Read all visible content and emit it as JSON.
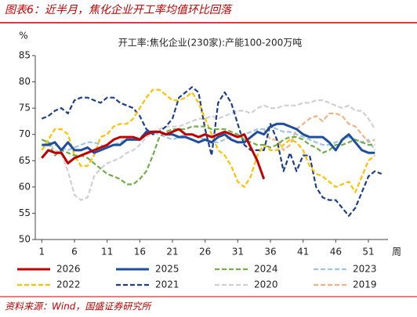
{
  "chart_data": {
    "type": "line",
    "title": "图表6：近半月，焦化企业开工率均值环比回落",
    "subtitle": "开工率:焦化企业(230家):产能100-200万吨",
    "source": "资料来源：Wind，国盛证券研究所",
    "ylabel": "%",
    "xlabel": "周",
    "x": [
      1,
      2,
      3,
      4,
      5,
      6,
      7,
      8,
      9,
      10,
      11,
      12,
      13,
      14,
      15,
      16,
      17,
      18,
      19,
      20,
      21,
      22,
      23,
      24,
      25,
      26,
      27,
      28,
      29,
      30,
      31,
      32,
      33,
      34,
      35,
      36,
      37,
      38,
      39,
      40,
      41,
      42,
      43,
      44,
      45,
      46,
      47,
      48,
      49,
      50,
      51,
      52,
      53
    ],
    "xlim": [
      0,
      54
    ],
    "xticks": [
      1,
      6,
      11,
      16,
      21,
      26,
      31,
      36,
      41,
      46,
      51
    ],
    "ylim": [
      50,
      85
    ],
    "yticks": [
      50,
      55,
      60,
      65,
      70,
      75,
      80,
      85
    ],
    "series": [
      {
        "name": "2026",
        "color": "#c00000",
        "style": "solid",
        "values": [
          65.5,
          67,
          66.5,
          66.5,
          64.5,
          65.5,
          66,
          66.5,
          67,
          67.5,
          68,
          69,
          69.5,
          69.5,
          69.5,
          69,
          70,
          70.5,
          70.5,
          70,
          70.5,
          71,
          70,
          70,
          69.5,
          70,
          69.5,
          70,
          70.5,
          70,
          69.5,
          70,
          67.5,
          65,
          61.5,
          null,
          null,
          null,
          null,
          null,
          null,
          null,
          null,
          null,
          null,
          null,
          null,
          null,
          null,
          null,
          null,
          null,
          null
        ]
      },
      {
        "name": "2025",
        "color": "#1f4e9c",
        "style": "solid",
        "values": [
          68,
          68,
          68.5,
          67,
          68.5,
          67,
          67,
          67.5,
          66.5,
          67,
          67.5,
          68,
          68,
          69,
          69,
          69,
          70.5,
          70.5,
          70.5,
          70,
          70,
          69.5,
          69.5,
          69,
          68.5,
          69,
          68.5,
          69.5,
          70,
          69,
          68.5,
          68.5,
          69.5,
          70.5,
          70,
          71.5,
          72,
          72,
          71.5,
          71,
          70,
          69.5,
          69.5,
          69.5,
          68.5,
          67,
          69,
          70,
          68.5,
          67,
          66.5,
          66.5,
          null
        ]
      },
      {
        "name": "2024",
        "color": "#70ad47",
        "style": "dashed",
        "values": [
          69,
          68.5,
          66,
          67,
          66.5,
          66,
          66,
          65.5,
          64.5,
          63.5,
          62.5,
          62,
          61.5,
          60.5,
          60.5,
          61.5,
          63,
          66,
          69.5,
          70.5,
          71,
          71,
          71,
          71.5,
          71.5,
          71.5,
          71,
          71,
          71,
          70.5,
          70,
          69,
          68.5,
          68,
          68,
          67.5,
          68,
          69,
          69.5,
          69.5,
          69,
          68,
          67.5,
          66.5,
          67,
          68,
          68,
          68.5,
          69,
          68.5,
          68,
          68,
          null
        ]
      },
      {
        "name": "2023",
        "color": "#9dc3e6",
        "style": "dashed",
        "values": [
          69,
          68.5,
          68,
          67.5,
          67,
          67.5,
          68,
          68.5,
          68.5,
          68,
          67.5,
          68,
          68.5,
          69,
          69,
          69.5,
          70,
          70.5,
          70,
          69.5,
          69,
          69.5,
          70,
          70,
          69.5,
          69,
          68.5,
          68.5,
          69,
          69.5,
          70,
          70,
          70.5,
          71,
          71,
          71.5,
          71,
          70.5,
          70.5,
          70,
          69.5,
          69,
          68.5,
          68,
          68,
          68.5,
          69,
          69.5,
          69,
          68.5,
          69,
          67,
          null
        ]
      },
      {
        "name": "2022",
        "color": "#ffc000",
        "style": "dashed",
        "values": [
          67,
          69,
          71,
          71,
          70,
          66,
          64,
          64,
          66,
          69.5,
          70,
          71.5,
          72,
          72,
          73,
          75,
          77,
          78.5,
          78.5,
          77.5,
          76.5,
          76.5,
          77,
          78,
          76,
          73,
          70,
          67,
          66,
          64,
          61,
          60,
          62,
          66,
          68,
          67,
          67,
          68,
          69,
          68.5,
          67,
          64,
          62.5,
          62,
          61,
          60,
          60.5,
          61,
          59,
          62,
          65,
          66,
          null
        ]
      },
      {
        "name": "2021",
        "color": "#1c3f8c",
        "style": "dashed",
        "values": [
          73,
          73.5,
          74.5,
          75,
          74,
          76.5,
          77,
          77,
          76.5,
          76,
          77,
          77,
          76,
          75.5,
          75,
          73.5,
          71,
          70,
          70.5,
          71.5,
          73,
          77,
          78,
          79,
          78,
          71,
          66,
          76,
          78,
          76,
          72,
          68,
          67,
          67,
          67,
          72,
          69,
          63,
          66.5,
          63,
          66,
          66,
          60,
          58,
          57.5,
          57.5,
          56,
          54.5,
          56,
          59,
          62,
          63,
          62.5
        ]
      },
      {
        "name": "2020",
        "color": "#d0d0d0",
        "style": "dashed",
        "values": [
          67,
          68.5,
          67,
          66.5,
          63,
          58.5,
          57.5,
          58,
          62,
          63.5,
          64.5,
          65,
          65.5,
          66.5,
          67,
          68,
          69.5,
          70.5,
          71,
          71.5,
          71.5,
          71.5,
          72,
          72.5,
          73,
          73,
          73.5,
          73,
          73.5,
          74,
          74.5,
          74.5,
          74,
          75,
          75.5,
          75,
          75,
          75.5,
          75.5,
          75.5,
          76,
          76,
          76.5,
          76.5,
          76,
          75.5,
          75,
          75.5,
          74.5,
          74.5,
          73,
          71,
          null
        ]
      },
      {
        "name": "2019",
        "color": "#f4b183",
        "style": "dashed",
        "values": [
          null,
          null,
          null,
          null,
          null,
          null,
          null,
          null,
          null,
          null,
          null,
          null,
          null,
          null,
          null,
          null,
          null,
          null,
          null,
          null,
          null,
          null,
          null,
          null,
          null,
          null,
          null,
          null,
          null,
          null,
          null,
          null,
          null,
          null,
          71,
          69,
          69,
          67,
          68,
          71,
          72,
          73,
          73.5,
          72.5,
          74,
          74,
          73.5,
          72,
          71.5,
          70,
          68.5,
          69,
          null
        ]
      }
    ]
  }
}
